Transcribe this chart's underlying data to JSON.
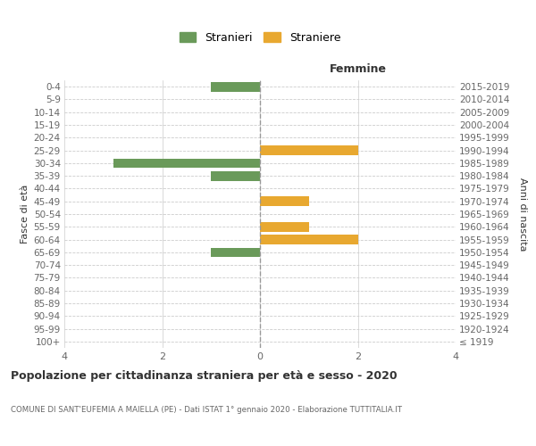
{
  "age_groups": [
    "100+",
    "95-99",
    "90-94",
    "85-89",
    "80-84",
    "75-79",
    "70-74",
    "65-69",
    "60-64",
    "55-59",
    "50-54",
    "45-49",
    "40-44",
    "35-39",
    "30-34",
    "25-29",
    "20-24",
    "15-19",
    "10-14",
    "5-9",
    "0-4"
  ],
  "birth_years": [
    "≤ 1919",
    "1920-1924",
    "1925-1929",
    "1930-1934",
    "1935-1939",
    "1940-1944",
    "1945-1949",
    "1950-1954",
    "1955-1959",
    "1960-1964",
    "1965-1969",
    "1970-1974",
    "1975-1979",
    "1980-1984",
    "1985-1989",
    "1990-1994",
    "1995-1999",
    "2000-2004",
    "2005-2009",
    "2010-2014",
    "2015-2019"
  ],
  "males": [
    0,
    0,
    0,
    0,
    0,
    0,
    0,
    1,
    0,
    0,
    0,
    0,
    0,
    1,
    3,
    0,
    0,
    0,
    0,
    0,
    1
  ],
  "females": [
    0,
    0,
    0,
    0,
    0,
    0,
    0,
    0,
    2,
    1,
    0,
    1,
    0,
    0,
    0,
    2,
    0,
    0,
    0,
    0,
    0
  ],
  "male_color": "#6a9a5a",
  "female_color": "#e8a830",
  "title": "Popolazione per cittadinanza straniera per età e sesso - 2020",
  "subtitle": "COMUNE DI SANT'EUFEMIA A MAIELLA (PE) - Dati ISTAT 1° gennaio 2020 - Elaborazione TUTTITALIA.IT",
  "ylabel_left": "Fasce di età",
  "ylabel_right": "Anni di nascita",
  "header_right": "Femmine",
  "legend_male": "Stranieri",
  "legend_female": "Straniere",
  "xlim": 4,
  "bar_height": 0.75,
  "background_color": "#ffffff",
  "grid_color": "#cccccc",
  "axis_label_color": "#333333",
  "tick_color": "#666666"
}
